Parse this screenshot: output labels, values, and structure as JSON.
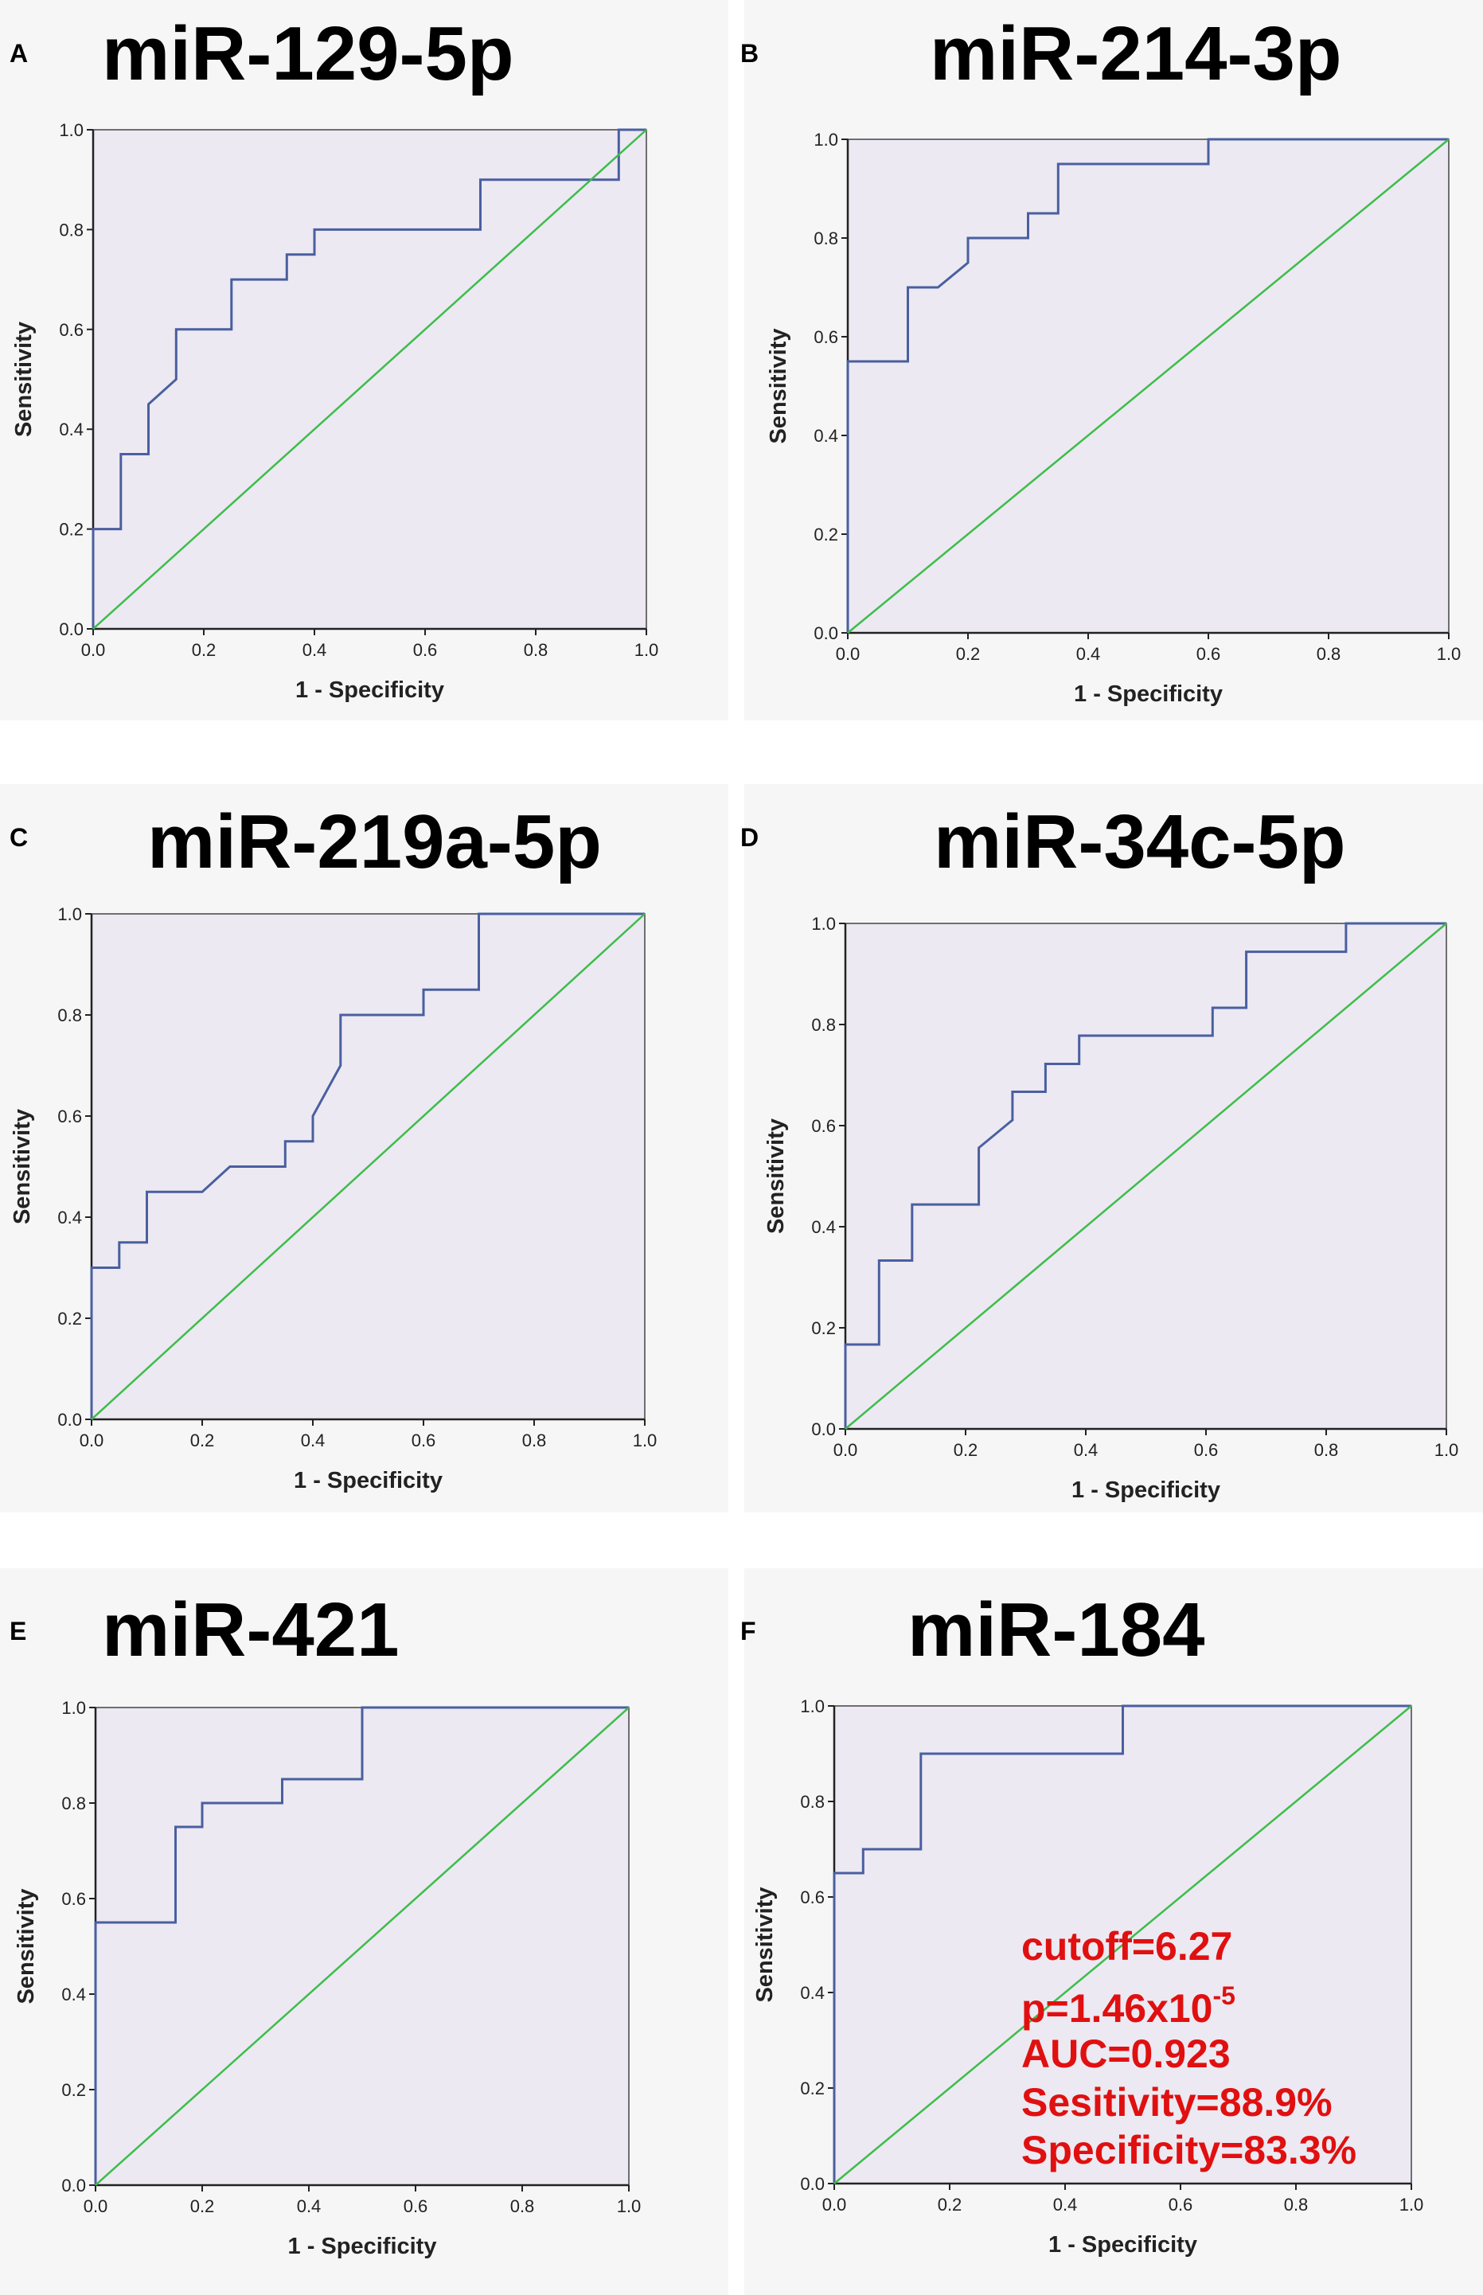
{
  "colors": {
    "roc_curve": "#4a5fa0",
    "reference_line": "#3dbd4a",
    "plot_background": "#ece9f2",
    "annotation_text": "#e01010"
  },
  "chart_data": [
    {
      "panel": "A",
      "title": "miR-129-5p",
      "type": "line",
      "xlabel": "1 - Specificity",
      "ylabel": "Sensitivity",
      "xlim": [
        0,
        1
      ],
      "ylim": [
        0,
        1
      ],
      "xticks": [
        "0.0",
        "0.2",
        "0.4",
        "0.6",
        "0.8",
        "1.0"
      ],
      "yticks": [
        "0.0",
        "0.2",
        "0.4",
        "0.6",
        "0.8",
        "1.0"
      ],
      "series": [
        {
          "name": "ROC",
          "x": [
            0,
            0,
            0.05,
            0.05,
            0.1,
            0.1,
            0.15,
            0.15,
            0.25,
            0.25,
            0.35,
            0.35,
            0.4,
            0.4,
            0.7,
            0.7,
            0.95,
            0.95,
            1.0
          ],
          "y": [
            0,
            0.2,
            0.2,
            0.35,
            0.35,
            0.45,
            0.5,
            0.6,
            0.6,
            0.7,
            0.7,
            0.75,
            0.75,
            0.8,
            0.8,
            0.9,
            0.9,
            1.0,
            1.0
          ]
        },
        {
          "name": "Reference",
          "x": [
            0,
            1
          ],
          "y": [
            0,
            1
          ]
        }
      ]
    },
    {
      "panel": "B",
      "title": "miR-214-3p",
      "type": "line",
      "xlabel": "1 - Specificity",
      "ylabel": "Sensitivity",
      "xlim": [
        0,
        1
      ],
      "ylim": [
        0,
        1
      ],
      "xticks": [
        "0.0",
        "0.2",
        "0.4",
        "0.6",
        "0.8",
        "1.0"
      ],
      "yticks": [
        "0.0",
        "0.2",
        "0.4",
        "0.6",
        "0.8",
        "1.0"
      ],
      "series": [
        {
          "name": "ROC",
          "x": [
            0,
            0,
            0.1,
            0.1,
            0.15,
            0.2,
            0.2,
            0.3,
            0.3,
            0.35,
            0.35,
            0.6,
            0.6,
            1.0
          ],
          "y": [
            0,
            0.55,
            0.55,
            0.7,
            0.7,
            0.75,
            0.8,
            0.8,
            0.85,
            0.85,
            0.95,
            0.95,
            1.0,
            1.0
          ]
        },
        {
          "name": "Reference",
          "x": [
            0,
            1
          ],
          "y": [
            0,
            1
          ]
        }
      ]
    },
    {
      "panel": "C",
      "title": "miR-219a-5p",
      "type": "line",
      "xlabel": "1 - Specificity",
      "ylabel": "Sensitivity",
      "xlim": [
        0,
        1
      ],
      "ylim": [
        0,
        1
      ],
      "xticks": [
        "0.0",
        "0.2",
        "0.4",
        "0.6",
        "0.8",
        "1.0"
      ],
      "yticks": [
        "0.0",
        "0.2",
        "0.4",
        "0.6",
        "0.8",
        "1.0"
      ],
      "series": [
        {
          "name": "ROC",
          "x": [
            0,
            0,
            0.05,
            0.05,
            0.1,
            0.1,
            0.2,
            0.25,
            0.35,
            0.35,
            0.4,
            0.4,
            0.45,
            0.45,
            0.6,
            0.6,
            0.7,
            0.7,
            1.0
          ],
          "y": [
            0,
            0.3,
            0.3,
            0.35,
            0.35,
            0.45,
            0.45,
            0.5,
            0.5,
            0.55,
            0.55,
            0.6,
            0.7,
            0.8,
            0.8,
            0.85,
            0.85,
            1.0,
            1.0
          ]
        },
        {
          "name": "Reference",
          "x": [
            0,
            1
          ],
          "y": [
            0,
            1
          ]
        }
      ]
    },
    {
      "panel": "D",
      "title": "miR-34c-5p",
      "type": "line",
      "xlabel": "1 - Specificity",
      "ylabel": "Sensitivity",
      "xlim": [
        0,
        1
      ],
      "ylim": [
        0,
        1
      ],
      "xticks": [
        "0.0",
        "0.2",
        "0.4",
        "0.6",
        "0.8",
        "1.0"
      ],
      "yticks": [
        "0.0",
        "0.2",
        "0.4",
        "0.6",
        "0.8",
        "1.0"
      ],
      "series": [
        {
          "name": "ROC",
          "x": [
            0,
            0,
            0.056,
            0.056,
            0.111,
            0.111,
            0.222,
            0.222,
            0.278,
            0.278,
            0.333,
            0.333,
            0.389,
            0.389,
            0.611,
            0.611,
            0.667,
            0.667,
            0.833,
            0.833,
            1.0
          ],
          "y": [
            0,
            0.167,
            0.167,
            0.333,
            0.333,
            0.444,
            0.444,
            0.556,
            0.611,
            0.667,
            0.667,
            0.722,
            0.722,
            0.778,
            0.778,
            0.833,
            0.833,
            0.944,
            0.944,
            1.0,
            1.0
          ]
        },
        {
          "name": "Reference",
          "x": [
            0,
            1
          ],
          "y": [
            0,
            1
          ]
        }
      ]
    },
    {
      "panel": "E",
      "title": "miR-421",
      "type": "line",
      "xlabel": "1 - Specificity",
      "ylabel": "Sensitivity",
      "xlim": [
        0,
        1
      ],
      "ylim": [
        0,
        1
      ],
      "xticks": [
        "0.0",
        "0.2",
        "0.4",
        "0.6",
        "0.8",
        "1.0"
      ],
      "yticks": [
        "0.0",
        "0.2",
        "0.4",
        "0.6",
        "0.8",
        "1.0"
      ],
      "series": [
        {
          "name": "ROC",
          "x": [
            0,
            0,
            0.15,
            0.15,
            0.2,
            0.2,
            0.35,
            0.35,
            0.5,
            0.5,
            1.0
          ],
          "y": [
            0,
            0.55,
            0.55,
            0.75,
            0.75,
            0.8,
            0.8,
            0.85,
            0.85,
            1.0,
            1.0
          ]
        },
        {
          "name": "Reference",
          "x": [
            0,
            1
          ],
          "y": [
            0,
            1
          ]
        }
      ]
    },
    {
      "panel": "F",
      "title": "miR-184",
      "type": "line",
      "xlabel": "1 - Specificity",
      "ylabel": "Sensitivity",
      "xlim": [
        0,
        1
      ],
      "ylim": [
        0,
        1
      ],
      "xticks": [
        "0.0",
        "0.2",
        "0.4",
        "0.6",
        "0.8",
        "1.0"
      ],
      "yticks": [
        "0.0",
        "0.2",
        "0.4",
        "0.6",
        "0.8",
        "1.0"
      ],
      "series": [
        {
          "name": "ROC",
          "x": [
            0,
            0,
            0.05,
            0.05,
            0.15,
            0.15,
            0.5,
            0.5,
            1.0
          ],
          "y": [
            0,
            0.65,
            0.65,
            0.7,
            0.7,
            0.9,
            0.9,
            1.0,
            1.0
          ]
        },
        {
          "name": "Reference",
          "x": [
            0,
            1
          ],
          "y": [
            0,
            1
          ]
        }
      ],
      "annotation": {
        "cutoff": "cutoff=6.27",
        "p_base": "p=1.46x10",
        "p_exp": "-5",
        "auc": "AUC=0.923",
        "sensitivity": "Sesitivity=88.9%",
        "specificity": "Specificity=83.3%"
      }
    }
  ]
}
